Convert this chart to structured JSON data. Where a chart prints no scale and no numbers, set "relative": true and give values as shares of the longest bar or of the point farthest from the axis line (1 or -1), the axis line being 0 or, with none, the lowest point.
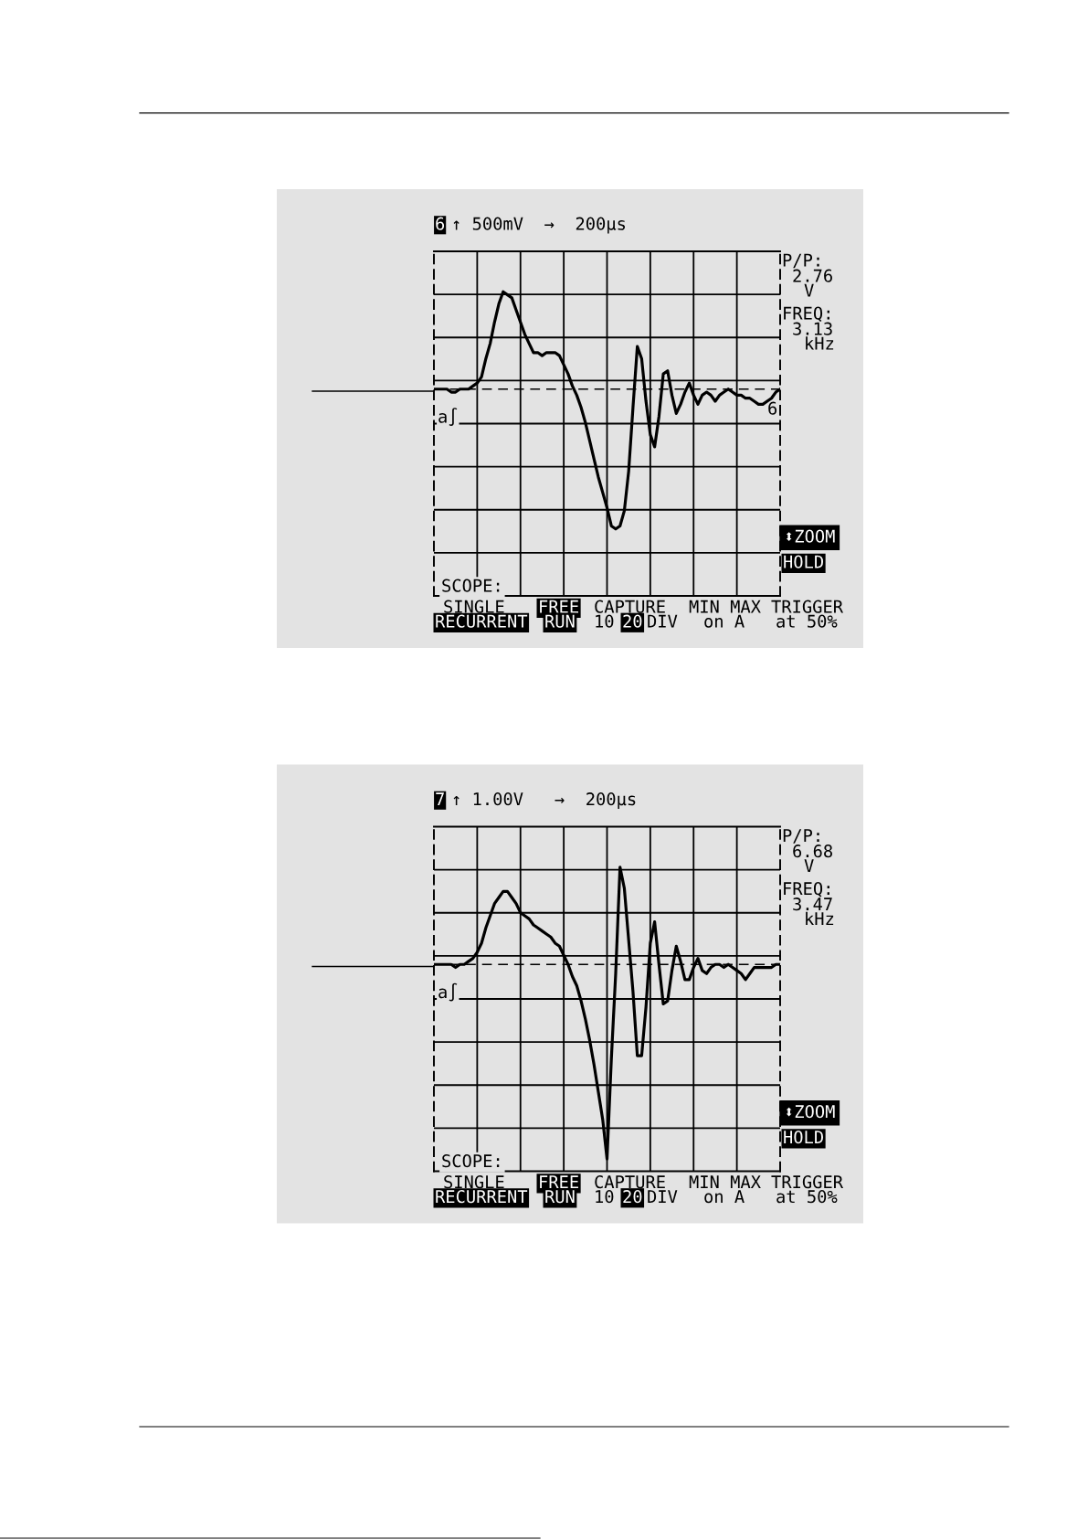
{
  "chart_data": [
    {
      "type": "line",
      "title": "↑ 500mV  →  200µs",
      "relative": true,
      "grid": true,
      "categories": [
        null,
        null,
        null,
        null,
        null,
        null,
        null,
        null,
        null,
        null,
        null,
        null,
        null,
        null,
        null,
        null,
        null,
        null,
        null,
        null,
        null,
        null,
        null,
        null,
        null,
        null,
        null,
        null,
        null,
        null,
        null,
        null,
        null,
        null,
        null,
        null,
        null,
        null,
        null,
        null,
        null,
        null,
        null,
        null,
        null,
        null,
        null,
        null,
        null,
        null,
        null,
        null,
        null,
        null,
        null,
        null,
        null,
        null,
        null,
        null,
        null,
        null,
        null,
        null,
        null,
        null,
        null,
        null,
        null,
        null,
        null,
        null,
        null,
        null,
        null,
        null,
        null,
        null,
        null,
        null,
        null
      ],
      "series": [
        {
          "color": "#000000",
          "values": [
            0.68,
            0.68,
            0.68,
            0.68,
            0.67,
            0.67,
            0.68,
            0.68,
            0.68,
            0.69,
            0.7,
            0.72,
            0.78,
            0.83,
            0.9,
            0.96,
            1.0,
            0.99,
            0.98,
            0.94,
            0.9,
            0.86,
            0.83,
            0.8,
            0.8,
            0.79,
            0.8,
            0.8,
            0.8,
            0.79,
            0.76,
            0.73,
            0.69,
            0.66,
            0.62,
            0.57,
            0.51,
            0.45,
            0.39,
            0.34,
            0.29,
            0.23,
            0.22,
            0.23,
            0.28,
            0.41,
            0.62,
            0.82,
            0.78,
            0.64,
            0.53,
            0.49,
            0.59,
            0.73,
            0.74,
            0.66,
            0.6,
            0.63,
            0.67,
            0.7,
            0.66,
            0.63,
            0.66,
            0.67,
            0.66,
            0.64,
            0.66,
            0.67,
            0.68,
            0.67,
            0.66,
            0.66,
            0.65,
            0.65,
            0.64,
            0.63,
            0.63,
            0.64,
            0.65,
            0.67,
            0.68
          ]
        }
      ],
      "ref_lines": [
        {
          "axis": "y",
          "value": 0.68,
          "color": "#000000",
          "line_style": "dashed"
        }
      ],
      "annotations": [
        "6",
        "P/P:",
        "2.76",
        "V",
        "FREQ:",
        "3.13",
        "kHz",
        "a∫",
        "⬍ZOOM",
        "HOLD",
        "SCOPE:",
        "SINGLE",
        "RECURRENT",
        "FREE",
        "RUN",
        "CAPTURE",
        "10",
        "20",
        "DIV",
        "MIN MAX",
        "on A",
        "TRIGGER",
        "at 50%",
        "6"
      ]
    },
    {
      "type": "line",
      "title": "↑ 1.00V   →  200µs",
      "relative": true,
      "grid": true,
      "categories": [
        null,
        null,
        null,
        null,
        null,
        null,
        null,
        null,
        null,
        null,
        null,
        null,
        null,
        null,
        null,
        null,
        null,
        null,
        null,
        null,
        null,
        null,
        null,
        null,
        null,
        null,
        null,
        null,
        null,
        null,
        null,
        null,
        null,
        null,
        null,
        null,
        null,
        null,
        null,
        null,
        null,
        null,
        null,
        null,
        null,
        null,
        null,
        null,
        null,
        null,
        null,
        null,
        null,
        null,
        null,
        null,
        null,
        null,
        null,
        null,
        null,
        null,
        null,
        null,
        null,
        null,
        null,
        null,
        null,
        null,
        null,
        null,
        null,
        null,
        null,
        null,
        null,
        null,
        null,
        null,
        null
      ],
      "series": [
        {
          "color": "#000000",
          "values": [
            0.68,
            0.68,
            0.68,
            0.68,
            0.68,
            0.67,
            0.68,
            0.68,
            0.69,
            0.7,
            0.72,
            0.75,
            0.8,
            0.84,
            0.88,
            0.9,
            0.92,
            0.92,
            0.9,
            0.88,
            0.85,
            0.84,
            0.83,
            0.81,
            0.8,
            0.79,
            0.78,
            0.77,
            0.75,
            0.74,
            0.71,
            0.68,
            0.64,
            0.61,
            0.56,
            0.5,
            0.43,
            0.35,
            0.26,
            0.17,
            0.04,
            0.37,
            0.65,
            1,
            0.93,
            0.76,
            0.59,
            0.38,
            0.38,
            0.54,
            0.75,
            0.82,
            0.68,
            0.55,
            0.56,
            0.66,
            0.74,
            0.69,
            0.63,
            0.63,
            0.67,
            0.7,
            0.66,
            0.65,
            0.67,
            0.68,
            0.68,
            0.67,
            0.68,
            0.67,
            0.66,
            0.65,
            0.63,
            0.65,
            0.67,
            0.67,
            0.67,
            0.67,
            0.67,
            0.68,
            0.68
          ]
        }
      ],
      "ref_lines": [
        {
          "axis": "y",
          "value": 0.68,
          "color": "#000000",
          "line_style": "dashed"
        }
      ],
      "annotations": [
        "7",
        "P/P:",
        "6.68",
        "V",
        "FREQ:",
        "3.47",
        "kHz",
        "a∫",
        "⬍ZOOM",
        "HOLD",
        "SCOPE:",
        "SINGLE",
        "RECURRENT",
        "FREE",
        "RUN",
        "CAPTURE",
        "10",
        "20",
        "DIV",
        "MIN MAX",
        "on A",
        "TRIGGER",
        "at 50%"
      ]
    }
  ]
}
